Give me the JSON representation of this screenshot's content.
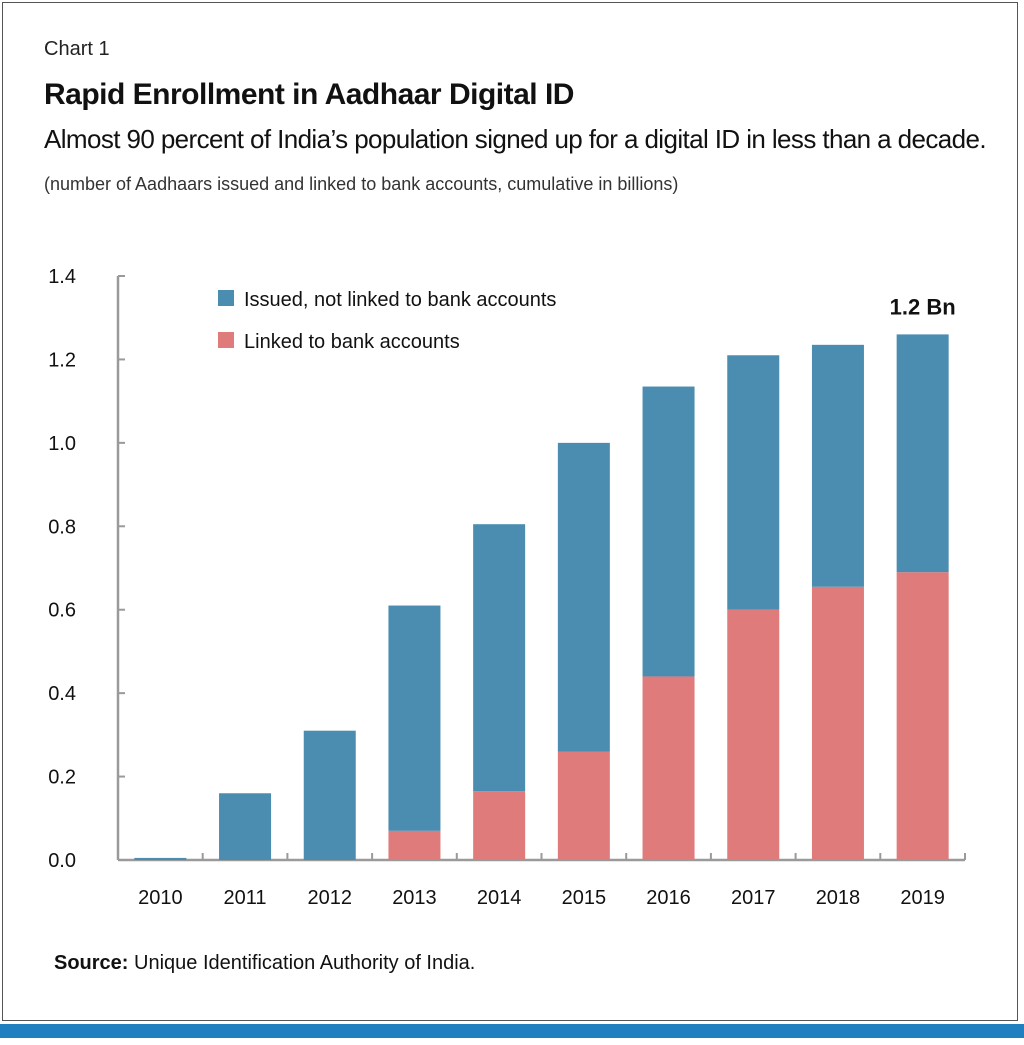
{
  "header": {
    "chart_label": "Chart 1",
    "title": "Rapid Enrollment in Aadhaar Digital ID",
    "subtitle": "Almost 90 percent of India’s population signed up for a digital ID in less than a decade.",
    "units": "(number of Aadhaars issued and linked to bank accounts, cumulative in billions)"
  },
  "footer": {
    "source_label": "Source:",
    "source_text": "Unique Identification Authority of India."
  },
  "colors": {
    "issued": "#4a8db0",
    "linked": "#df7b7b",
    "axis": "#9a9a9a",
    "bottom_bar": "#1f7fbf"
  },
  "chart_data": {
    "type": "bar",
    "stacked": true,
    "categories": [
      "2010",
      "2011",
      "2012",
      "2013",
      "2014",
      "2015",
      "2016",
      "2017",
      "2018",
      "2019"
    ],
    "series": [
      {
        "name": "Linked to bank accounts",
        "color": "#df7b7b",
        "values": [
          0,
          0,
          0,
          0.07,
          0.165,
          0.26,
          0.44,
          0.6,
          0.655,
          0.69
        ]
      },
      {
        "name": "Issued, not linked to bank accounts",
        "color": "#4a8db0",
        "values": [
          0.005,
          0.16,
          0.31,
          0.54,
          0.64,
          0.74,
          0.695,
          0.61,
          0.58,
          0.57
        ]
      }
    ],
    "ylim": [
      0,
      1.4
    ],
    "yticks": [
      "0.0",
      "0.2",
      "0.4",
      "0.6",
      "0.8",
      "1.0",
      "1.2",
      "1.4"
    ],
    "ytick_values": [
      0,
      0.2,
      0.4,
      0.6,
      0.8,
      1.0,
      1.2,
      1.4
    ],
    "grid": false,
    "legend_position": "top-left",
    "legend_order": [
      "Issued, not linked to bank accounts",
      "Linked to bank accounts"
    ],
    "annotation": {
      "text": "1.2 Bn",
      "category": "2019"
    }
  }
}
